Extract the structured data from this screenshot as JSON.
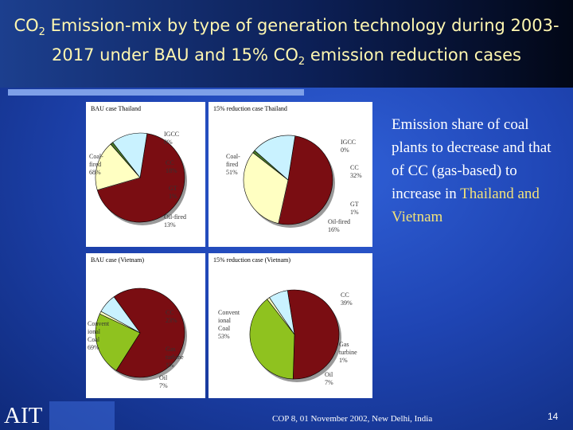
{
  "title": {
    "line1_pre": "CO",
    "line1_sub": "2",
    "line1_post": " Emission-mix by type of generation technology during 2003-",
    "line2_pre": "2017 under BAU and 15% CO",
    "line2_sub": "2",
    "line2_post": " emission reduction cases"
  },
  "note": {
    "pre": "Emission share of coal plants to decrease and that of CC (gas-based) to increase in ",
    "highlight": "Thailand and Vietnam"
  },
  "footer": {
    "logo_text": "AIT",
    "conference": "COP 8, 01 November 2002, New Delhi, India",
    "page_number": "14"
  },
  "colors": {
    "coal": "#7a0d12",
    "cc_thailand": "#ffffc2",
    "cc_vietnam": "#8fc21f",
    "gt": "#4a7a2a",
    "gas_turbine_vietnam": "#ffffc2",
    "oil": "#c9f2ff",
    "igcc": "#777777"
  },
  "chart_data": [
    {
      "type": "pie",
      "title": "BAU case Thailand",
      "series": [
        {
          "values": [
            68,
            0,
            18,
            1,
            13
          ]
        }
      ],
      "categories": [
        "Coal-fired",
        "IGCC",
        "CC",
        "GT",
        "Oil-fired"
      ],
      "labels": [
        "Coal-\nfired\n68%",
        "IGCC\n0%",
        "CC\n18%",
        "GT\n1%",
        "Oil-fired\n13%"
      ]
    },
    {
      "type": "pie",
      "title": "15% reduction case Thailand",
      "series": [
        {
          "values": [
            51,
            0,
            32,
            1,
            16
          ]
        }
      ],
      "categories": [
        "Coal-fired",
        "IGCC",
        "CC",
        "GT",
        "Oil-fired"
      ],
      "labels": [
        "Coal-\nfired\n51%",
        "IGCC\n0%",
        "CC\n32%",
        "GT\n1%",
        "Oil-fired\n16%"
      ]
    },
    {
      "type": "pie",
      "title": "BAU case (Vietnam)",
      "series": [
        {
          "values": [
            69,
            23,
            1,
            7
          ]
        }
      ],
      "categories": [
        "Conventional Coal",
        "CC",
        "Gas turbine",
        "Oil"
      ],
      "labels": [
        "Convent\nional\nCoal\n69%",
        "CC\n23%",
        "Gas\nturbine\n1%",
        "Oil\n7%"
      ]
    },
    {
      "type": "pie",
      "title": "15% reduction case (Vietnam)",
      "series": [
        {
          "values": [
            53,
            39,
            1,
            7
          ]
        }
      ],
      "categories": [
        "Conventional Coal",
        "CC",
        "Gas turbine",
        "Oil"
      ],
      "labels": [
        "Convent\nional\nCoal\n53%",
        "CC\n39%",
        "Gas\nturbine\n1%",
        "Oil\n7%"
      ]
    }
  ]
}
